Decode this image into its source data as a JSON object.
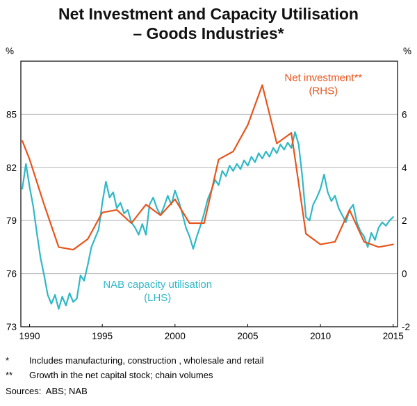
{
  "header": {
    "title_line1": "Net Investment and Capacity Utilisation",
    "title_line2": "– Goods Industries*"
  },
  "footnotes": [
    {
      "marker": "*",
      "text": "Includes manufacturing, construction , wholesale and retail"
    },
    {
      "marker": "**",
      "text": "Growth in the net capital stock; chain volumes"
    }
  ],
  "sources": "Sources:  ABS; NAB",
  "chart_data": {
    "type": "line",
    "title": "Net Investment and Capacity Utilisation – Goods Industries*",
    "grid": true,
    "frame_color": "#000000",
    "grid_color": "#b5b5b5",
    "xlim": [
      1989.4,
      2015.3
    ],
    "x_ticks": [
      1990,
      1995,
      2000,
      2005,
      2010,
      2015
    ],
    "left_axis": {
      "label": "%",
      "lim": [
        73,
        88
      ],
      "ticks": [
        73,
        76,
        79,
        82,
        85
      ]
    },
    "right_axis": {
      "label": "%",
      "lim": [
        -2,
        8
      ],
      "ticks": [
        -2,
        0,
        2,
        4,
        6
      ]
    },
    "series": [
      {
        "id": "capacity_utilisation",
        "name": "NAB capacity utilisation (LHS)",
        "axis": "left",
        "color": "#2fb8c6",
        "x_start": 1989.5,
        "x_step": 0.25,
        "values": [
          80.8,
          82.2,
          80.9,
          79.8,
          78.3,
          76.9,
          75.9,
          74.8,
          74.3,
          74.8,
          74.0,
          74.7,
          74.2,
          74.9,
          74.4,
          74.6,
          75.9,
          75.6,
          76.5,
          77.5,
          78.0,
          78.5,
          80.0,
          81.2,
          80.3,
          80.6,
          79.7,
          80.0,
          79.4,
          79.6,
          78.9,
          78.6,
          78.2,
          78.8,
          78.2,
          79.9,
          80.3,
          79.7,
          79.3,
          79.8,
          80.4,
          79.9,
          80.7,
          80.1,
          79.4,
          78.6,
          78.1,
          77.4,
          78.1,
          78.7,
          79.4,
          80.2,
          80.7,
          81.3,
          81.0,
          81.8,
          81.5,
          82.1,
          81.8,
          82.2,
          81.9,
          82.4,
          82.1,
          82.6,
          82.3,
          82.8,
          82.5,
          82.9,
          82.6,
          83.1,
          82.8,
          83.3,
          83.0,
          83.4,
          83.1,
          84.0,
          83.3,
          81.5,
          79.2,
          79.0,
          79.9,
          80.3,
          80.8,
          81.6,
          80.6,
          80.1,
          80.4,
          79.7,
          79.3,
          78.9,
          79.6,
          79.9,
          78.9,
          78.4,
          78.1,
          77.5,
          78.3,
          77.9,
          78.6,
          78.9,
          78.7,
          79.0,
          79.2
        ]
      },
      {
        "id": "net_investment",
        "name": "Net investment** (RHS)",
        "axis": "right",
        "color": "#e8541c",
        "x": [
          1989.5,
          1990,
          1991,
          1992,
          1993,
          1994,
          1995,
          1996,
          1997,
          1998,
          1999,
          2000,
          2001,
          2002,
          2003,
          2004,
          2005,
          2006,
          2007,
          2008,
          2009,
          2010,
          2011,
          2012,
          2013,
          2014,
          2015
        ],
        "values": [
          5.0,
          4.3,
          2.6,
          1.0,
          0.9,
          1.3,
          2.3,
          2.4,
          1.9,
          2.6,
          2.2,
          2.8,
          1.9,
          1.9,
          4.3,
          4.6,
          5.6,
          7.1,
          4.9,
          5.3,
          1.5,
          1.1,
          1.2,
          2.4,
          1.2,
          1.0,
          1.1
        ]
      }
    ],
    "annotations": [
      {
        "id": "net_investment",
        "lines": [
          "Net investment**",
          "(RHS)"
        ],
        "axis": "right",
        "x": 2010.2,
        "y": 7.25,
        "color": "#e8541c"
      },
      {
        "id": "capacity_utilisation",
        "lines": [
          "NAB capacity utilisation",
          "(LHS)"
        ],
        "axis": "left",
        "x": 1998.8,
        "y": 75.2,
        "color": "#2fb8c6"
      }
    ]
  }
}
